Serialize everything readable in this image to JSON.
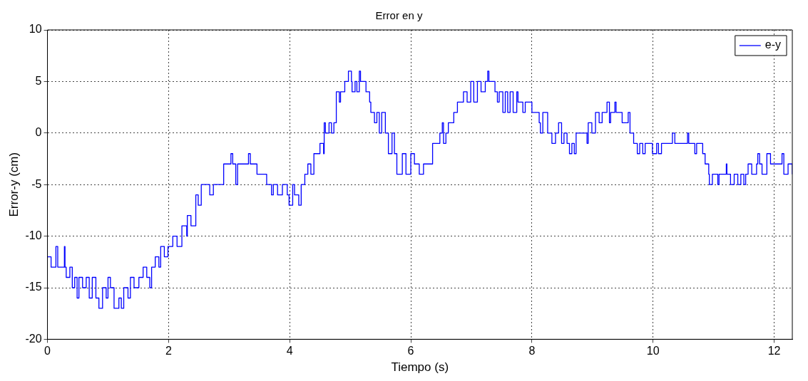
{
  "chart_data": {
    "type": "step",
    "title": "Error en y",
    "xlabel": "Tiempo (s)",
    "ylabel": "Error-y (cm)",
    "xlim": [
      0,
      12.3
    ],
    "xticks": [
      0,
      2,
      4,
      6,
      8,
      10,
      12
    ],
    "ylim": [
      -20,
      10
    ],
    "yticks": [
      -20,
      -15,
      -10,
      -5,
      0,
      5,
      10
    ],
    "grid": true,
    "legend": "top right",
    "series": [
      {
        "name": "e-y",
        "color": "#0000ff",
        "x": [
          0,
          0.02,
          0.06,
          0.14,
          0.17,
          0.28,
          0.29,
          0.31,
          0.37,
          0.41,
          0.45,
          0.49,
          0.52,
          0.58,
          0.64,
          0.69,
          0.74,
          0.8,
          0.85,
          0.91,
          0.97,
          1.0,
          1.04,
          1.1,
          1.18,
          1.22,
          1.26,
          1.33,
          1.37,
          1.43,
          1.51,
          1.58,
          1.64,
          1.69,
          1.72,
          1.78,
          1.84,
          1.87,
          1.93,
          1.99,
          2.07,
          2.14,
          2.22,
          2.3,
          2.31,
          2.37,
          2.45,
          2.49,
          2.54,
          2.68,
          2.74,
          2.91,
          3.03,
          3.06,
          3.11,
          3.14,
          3.32,
          3.35,
          3.46,
          3.62,
          3.7,
          3.73,
          3.8,
          3.88,
          3.96,
          3.99,
          4.05,
          4.08,
          4.15,
          4.19,
          4.25,
          4.3,
          4.35,
          4.4,
          4.5,
          4.56,
          4.57,
          4.59,
          4.65,
          4.69,
          4.73,
          4.77,
          4.82,
          4.84,
          4.91,
          4.97,
          5.02,
          5.03,
          5.08,
          5.11,
          5.15,
          5.17,
          5.26,
          5.32,
          5.34,
          5.4,
          5.44,
          5.48,
          5.52,
          5.58,
          5.63,
          5.69,
          5.73,
          5.77,
          5.86,
          5.92,
          6.0,
          6.06,
          6.14,
          6.21,
          6.36,
          6.48,
          6.52,
          6.54,
          6.58,
          6.62,
          6.71,
          6.77,
          6.87,
          6.93,
          6.99,
          7.04,
          7.1,
          7.16,
          7.23,
          7.27,
          7.29,
          7.39,
          7.43,
          7.46,
          7.52,
          7.56,
          7.6,
          7.64,
          7.69,
          7.75,
          7.77,
          7.85,
          7.89,
          8.0,
          8.12,
          8.14,
          8.18,
          8.26,
          8.33,
          8.39,
          8.44,
          8.49,
          8.53,
          8.58,
          8.62,
          8.66,
          8.7,
          8.73,
          8.89,
          8.91,
          8.93,
          8.99,
          9.05,
          9.11,
          9.16,
          9.24,
          9.28,
          9.3,
          9.37,
          9.39,
          9.49,
          9.59,
          9.62,
          9.68,
          9.74,
          9.78,
          9.83,
          9.87,
          9.99,
          10.06,
          10.09,
          10.14,
          10.32,
          10.36,
          10.57,
          10.59,
          10.69,
          10.72,
          10.82,
          10.86,
          10.92,
          10.93,
          10.98,
          11.07,
          11.09,
          11.21,
          11.22,
          11.28,
          11.34,
          11.4,
          11.45,
          11.5,
          11.53,
          11.57,
          11.63,
          11.71,
          11.73,
          11.76,
          11.8,
          11.88,
          11.94,
          12.13,
          12.16,
          12.23,
          12.3
        ],
        "values": [
          -12,
          -12,
          -13,
          -11,
          -13,
          -11,
          -13,
          -14,
          -13,
          -15,
          -14,
          -16,
          -14,
          -15,
          -14,
          -16,
          -14,
          -16,
          -17,
          -15,
          -16,
          -14,
          -15,
          -17,
          -16,
          -17,
          -15,
          -16,
          -14,
          -15,
          -14,
          -13,
          -14,
          -15,
          -13,
          -12,
          -13,
          -11,
          -12,
          -11,
          -10,
          -11,
          -9,
          -10,
          -8,
          -9,
          -6,
          -7,
          -5,
          -6,
          -5,
          -3,
          -2,
          -3,
          -5,
          -3,
          -2,
          -3,
          -4,
          -5,
          -6,
          -5,
          -6,
          -5,
          -6,
          -7,
          -5,
          -6,
          -7,
          -5,
          -4,
          -3,
          -4,
          -2,
          -1,
          -2,
          1,
          0,
          1,
          0,
          1,
          4,
          3,
          4,
          5,
          6,
          5,
          4,
          5,
          4,
          6,
          5,
          4,
          3,
          2,
          1,
          2,
          0,
          2,
          0,
          -2,
          0,
          -2,
          -4,
          -2,
          -4,
          -2,
          -3,
          -4,
          -3,
          -1,
          0,
          1,
          -1,
          0,
          1,
          2,
          3,
          4,
          3,
          5,
          3,
          5,
          4,
          5,
          6,
          5,
          4,
          3,
          4,
          2,
          4,
          2,
          4,
          2,
          4,
          3,
          2,
          3,
          2,
          1,
          0,
          2,
          0,
          -1,
          0,
          1,
          -1,
          0,
          -1,
          -2,
          -1,
          -2,
          0,
          0,
          -1,
          1,
          0,
          2,
          1,
          2,
          3,
          1,
          2,
          3,
          2,
          1,
          2,
          0,
          -1,
          -2,
          -1,
          -2,
          -1,
          -2,
          -1,
          -2,
          -1,
          0,
          -1,
          0,
          -1,
          -2,
          -1,
          -2,
          -3,
          -4,
          -5,
          -4,
          -5,
          -4,
          -3,
          -4,
          -5,
          -4,
          -5,
          -4,
          -5,
          -4,
          -3,
          -4,
          -3,
          -2,
          -3,
          -4,
          -2,
          -3,
          -2,
          -4,
          -3,
          -4
        ]
      }
    ]
  }
}
